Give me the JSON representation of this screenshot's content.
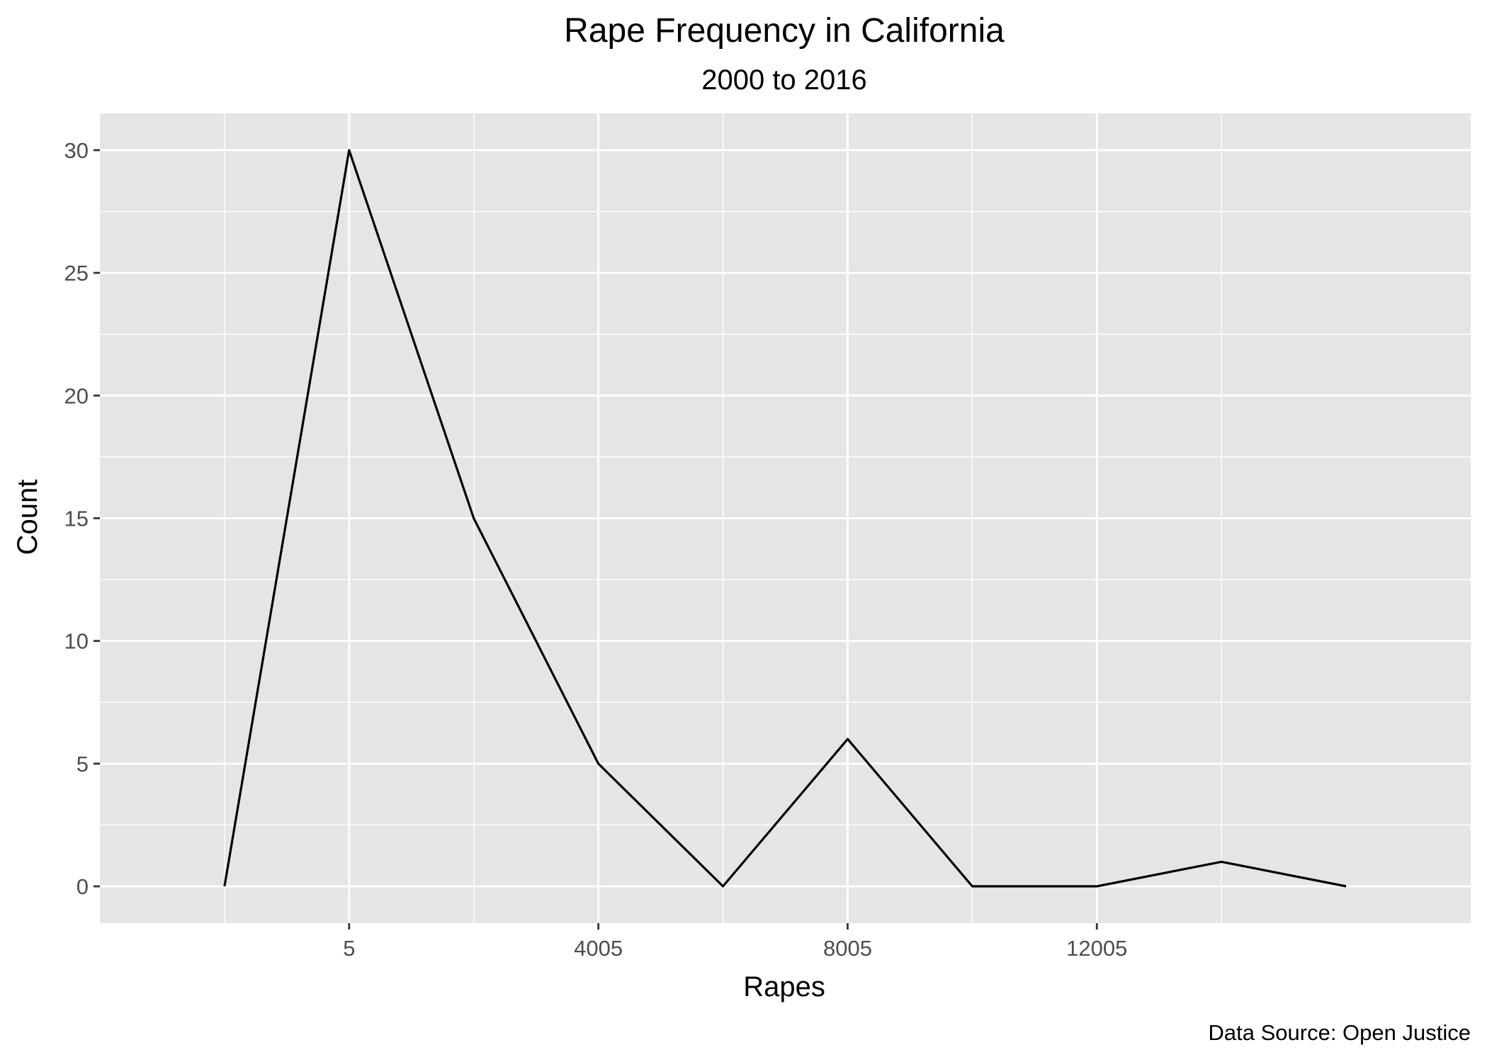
{
  "chart_data": {
    "type": "line",
    "title": "Rape Frequency in California",
    "subtitle": "2000 to 2016",
    "xlabel": "Rapes",
    "ylabel": "Count",
    "caption": "Data Source: Open Justice",
    "x": [
      -1995,
      5,
      2005,
      4005,
      6005,
      8005,
      10005,
      12005,
      14005,
      16005
    ],
    "series": [
      {
        "values": [
          0,
          30,
          15,
          5,
          0,
          6,
          0,
          0,
          1,
          0
        ]
      }
    ],
    "xlim": [
      -3995,
      18005
    ],
    "ylim": [
      -1.5,
      31.5
    ],
    "xticks": [
      5,
      4005,
      8005,
      12005
    ],
    "xtick_labels": [
      "5",
      "4005",
      "8005",
      "12005"
    ],
    "yticks": [
      0,
      5,
      10,
      15,
      20,
      25,
      30
    ],
    "ytick_labels": [
      "0",
      "5",
      "10",
      "15",
      "20",
      "25",
      "30"
    ],
    "grid": true,
    "colors": {
      "panel": "#e5e5e5",
      "grid": "#ffffff",
      "line": "#000000",
      "tick_text": "#4d4d4d"
    }
  }
}
